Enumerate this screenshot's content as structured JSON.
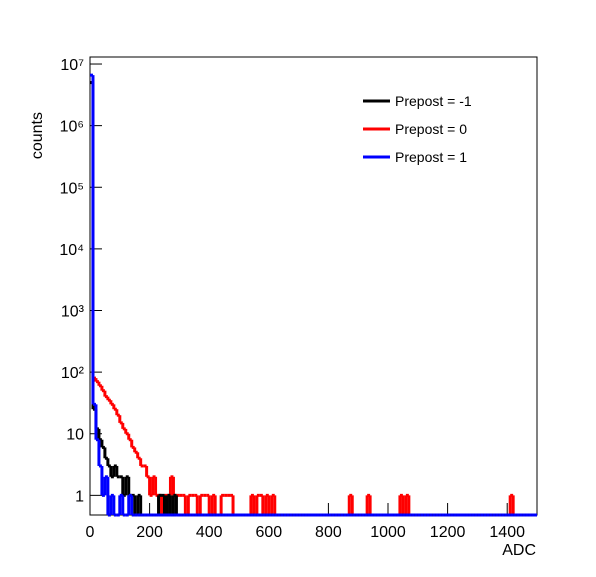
{
  "chart_data": {
    "type": "histogram",
    "xlabel": "ADC",
    "ylabel": "counts",
    "xlim": [
      0,
      1500
    ],
    "xticks": [
      0,
      200,
      400,
      600,
      800,
      1000,
      1200,
      1400
    ],
    "ylim": [
      0.48,
      13000000
    ],
    "log_y": true,
    "yticks": [
      1,
      10,
      {
        "value": 100,
        "label": "10²"
      },
      {
        "value": 1000,
        "label": "10³"
      },
      {
        "value": 10000,
        "label": "10⁴"
      },
      {
        "value": 100000,
        "label": "10⁵"
      },
      {
        "value": 1000000,
        "label": "10⁶"
      },
      {
        "value": 10000000,
        "label": "10⁷"
      }
    ],
    "legend": "top-right",
    "bins": [
      0,
      10,
      20,
      30,
      40,
      50,
      60,
      70,
      80,
      90,
      100,
      110,
      120,
      130,
      140,
      150,
      160,
      170,
      180,
      190,
      200,
      210,
      220,
      230,
      240,
      250,
      260,
      270,
      280,
      290,
      300,
      310,
      320,
      330,
      340,
      350,
      360,
      370,
      380,
      390,
      400,
      410,
      420,
      430,
      440,
      450,
      460,
      470,
      480,
      490,
      500,
      510,
      520,
      530,
      540,
      550,
      560,
      570,
      580,
      590,
      600,
      610,
      620,
      630,
      640,
      650,
      660,
      670,
      680,
      690,
      700,
      710,
      720,
      730,
      740,
      750,
      760,
      770,
      780,
      790,
      800,
      810,
      820,
      830,
      840,
      850,
      860,
      870,
      880,
      890,
      900,
      910,
      920,
      930,
      940,
      950,
      960,
      970,
      980,
      990,
      1000,
      1010,
      1020,
      1030,
      1040,
      1050,
      1060,
      1070,
      1080,
      1090,
      1100,
      1110,
      1120,
      1130,
      1140,
      1150,
      1160,
      1170,
      1180,
      1190,
      1200,
      1210,
      1220,
      1230,
      1240,
      1250,
      1260,
      1270,
      1280,
      1290,
      1300,
      1310,
      1320,
      1330,
      1340,
      1350,
      1360,
      1370,
      1380,
      1390,
      1400,
      1410,
      1420,
      1430,
      1440,
      1450,
      1460,
      1470,
      1480,
      1490,
      1500
    ],
    "series": [
      {
        "name": "Prepost = -1",
        "color": "#000000",
        "values": [
          5000000,
          25,
          12,
          8,
          6,
          4,
          3,
          2,
          3,
          2,
          2,
          1,
          2,
          1,
          1,
          0,
          1,
          0,
          0,
          0,
          0,
          0,
          0,
          1,
          1,
          0,
          1,
          0,
          1,
          0,
          0,
          0,
          0,
          0,
          0,
          0,
          0,
          0,
          0,
          0,
          0,
          0,
          0,
          0,
          0,
          0,
          0,
          0,
          0,
          0,
          0,
          0,
          0,
          0,
          0,
          0,
          0,
          0,
          0,
          0,
          0,
          0,
          0,
          0,
          0,
          0,
          0,
          0,
          0,
          0,
          0,
          0,
          0,
          0,
          0,
          0,
          0,
          0,
          0,
          0,
          0,
          0,
          0,
          0,
          0,
          0,
          0,
          0,
          0,
          0,
          0,
          0,
          0,
          0,
          0,
          0,
          0,
          0,
          0,
          0,
          0,
          0,
          0,
          0,
          0,
          0,
          0,
          0,
          0,
          0,
          0,
          0,
          0,
          0,
          0,
          0,
          0,
          0,
          0,
          0,
          0,
          0,
          0,
          0,
          0,
          0,
          0,
          0,
          0,
          0,
          0,
          0,
          0,
          0,
          0,
          0,
          0,
          0,
          0,
          0,
          0,
          0,
          0,
          0,
          0,
          0,
          0,
          0,
          0,
          0
        ]
      },
      {
        "name": "Prepost = 0",
        "color": "#ff0000",
        "values": [
          5000000,
          80,
          70,
          60,
          50,
          40,
          35,
          30,
          25,
          20,
          15,
          12,
          10,
          8,
          6,
          5,
          4,
          3,
          3,
          2,
          1,
          2,
          1,
          1,
          0,
          1,
          1,
          2,
          1,
          1,
          1,
          1,
          0,
          1,
          1,
          1,
          0,
          1,
          1,
          1,
          0,
          1,
          0,
          0,
          1,
          1,
          1,
          1,
          0,
          0,
          0,
          0,
          0,
          0,
          1,
          0,
          1,
          1,
          0,
          1,
          0,
          1,
          0,
          0,
          0,
          0,
          0,
          0,
          0,
          0,
          0,
          0,
          0,
          0,
          0,
          0,
          0,
          0,
          0,
          0,
          0,
          0,
          0,
          0,
          0,
          0,
          0,
          1,
          0,
          0,
          0,
          0,
          0,
          1,
          0,
          0,
          0,
          0,
          0,
          0,
          0,
          0,
          0,
          0,
          1,
          0,
          1,
          0,
          0,
          0,
          0,
          0,
          0,
          0,
          0,
          0,
          0,
          0,
          0,
          0,
          0,
          0,
          0,
          0,
          0,
          0,
          0,
          0,
          0,
          0,
          0,
          0,
          0,
          0,
          0,
          0,
          0,
          0,
          0,
          0,
          0,
          1,
          0,
          0,
          0,
          0,
          0,
          0,
          0,
          0
        ]
      },
      {
        "name": "Prepost = 1",
        "color": "#0000ff",
        "values": [
          6600000,
          30,
          8,
          3,
          1,
          2,
          0,
          1,
          0,
          0,
          1,
          0,
          0,
          1,
          0,
          0,
          0,
          0,
          0,
          0,
          0,
          0,
          0,
          0,
          0,
          0,
          0,
          0,
          0,
          0,
          0,
          0,
          0,
          0,
          0,
          0,
          0,
          0,
          0,
          0,
          0,
          0,
          0,
          0,
          0,
          0,
          0,
          0,
          0,
          0,
          0,
          0,
          0,
          0,
          0,
          0,
          0,
          0,
          0,
          0,
          0,
          0,
          0,
          0,
          0,
          0,
          0,
          0,
          0,
          0,
          0,
          0,
          0,
          0,
          0,
          0,
          0,
          0,
          0,
          0,
          0,
          0,
          0,
          0,
          0,
          0,
          0,
          0,
          0,
          0,
          0,
          0,
          0,
          0,
          0,
          0,
          0,
          0,
          0,
          0,
          0,
          0,
          0,
          0,
          0,
          0,
          0,
          0,
          0,
          0,
          0,
          0,
          0,
          0,
          0,
          0,
          0,
          0,
          0,
          0,
          0,
          0,
          0,
          0,
          0,
          0,
          0,
          0,
          0,
          0,
          0,
          0,
          0,
          0,
          0,
          0,
          0,
          0,
          0,
          0,
          0,
          0,
          0,
          0,
          0,
          0,
          0,
          0,
          0,
          0
        ]
      }
    ]
  }
}
